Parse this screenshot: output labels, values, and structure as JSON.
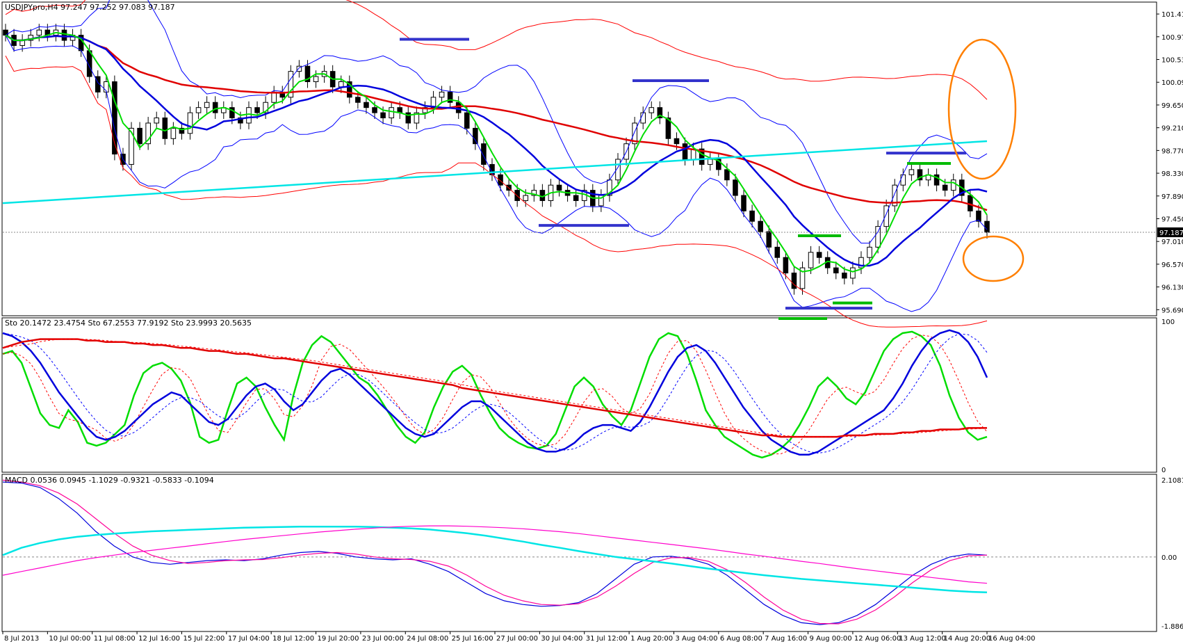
{
  "chart_data": [
    {
      "type": "candlestick",
      "header": "USDJPYpro,H4  97.247 97.252 97.083 97.187",
      "last_price": "97.187",
      "y_ticks": [
        "101.410",
        "100.970",
        "100.530",
        "100.090",
        "99.650",
        "99.210",
        "98.770",
        "98.330",
        "97.890",
        "97.450",
        "97.010",
        "96.570",
        "96.130",
        "95.690"
      ],
      "ylim": [
        95.6,
        101.6
      ],
      "close": [
        101.0,
        100.8,
        100.9,
        101.0,
        101.1,
        101.0,
        101.1,
        100.9,
        101.0,
        100.7,
        100.2,
        99.9,
        100.1,
        98.7,
        98.5,
        99.2,
        98.9,
        99.3,
        99.4,
        99.0,
        99.2,
        99.1,
        99.5,
        99.6,
        99.7,
        99.5,
        99.6,
        99.4,
        99.3,
        99.6,
        99.5,
        99.7,
        99.9,
        99.8,
        100.3,
        100.4,
        100.1,
        100.2,
        100.3,
        100.0,
        100.1,
        99.8,
        99.7,
        99.6,
        99.5,
        99.4,
        99.6,
        99.5,
        99.3,
        99.5,
        99.6,
        99.8,
        99.9,
        99.7,
        99.5,
        99.2,
        98.9,
        98.5,
        98.3,
        98.1,
        98.0,
        97.8,
        97.9,
        98.0,
        97.8,
        98.1,
        98.0,
        97.9,
        97.8,
        98.0,
        97.7,
        97.9,
        98.2,
        98.6,
        98.9,
        99.3,
        99.5,
        99.6,
        99.4,
        99.0,
        98.9,
        98.6,
        98.8,
        98.5,
        98.6,
        98.4,
        98.2,
        97.9,
        97.6,
        97.4,
        97.2,
        96.9,
        96.7,
        96.4,
        96.1,
        96.5,
        96.8,
        96.7,
        96.5,
        96.4,
        96.3,
        96.5,
        96.7,
        96.9,
        97.3,
        97.7,
        98.1,
        98.3,
        98.4,
        98.2,
        98.3,
        98.1,
        98.0,
        98.2,
        97.9,
        97.6,
        97.4,
        97.187
      ],
      "indicators": [
        "Bollinger Bands (blue)",
        "Bollinger Bands (red)",
        "Moving averages (green, blue, red, cyan)"
      ],
      "annotations": [
        "horizontal support/resistance marks (blue, green)",
        "orange ellipses at right edge"
      ]
    },
    {
      "type": "line",
      "header": "Sto 20.1472 23.4754  Sto 67.2553 77.9192  Sto 23.9993 20.5635",
      "y_ticks": [
        "100",
        "0"
      ],
      "ylim": [
        0,
        100
      ],
      "series": [
        {
          "color": "#00dd00",
          "values": [
            78,
            80,
            72,
            55,
            38,
            30,
            28,
            40,
            32,
            18,
            16,
            18,
            24,
            30,
            50,
            65,
            70,
            72,
            68,
            60,
            45,
            22,
            18,
            20,
            40,
            58,
            62,
            56,
            42,
            30,
            20,
            50,
            72,
            84,
            90,
            86,
            78,
            70,
            62,
            58,
            50,
            40,
            30,
            22,
            18,
            25,
            42,
            56,
            66,
            70,
            64,
            50,
            38,
            28,
            22,
            18,
            15,
            14,
            16,
            24,
            40,
            56,
            62,
            56,
            44,
            36,
            30,
            40,
            58,
            76,
            88,
            92,
            90,
            78,
            60,
            40,
            30,
            22,
            18,
            14,
            10,
            8,
            10,
            14,
            20,
            30,
            42,
            56,
            62,
            56,
            48,
            44,
            52,
            66,
            80,
            88,
            92,
            93,
            90,
            84,
            70,
            50,
            35,
            25,
            20,
            22
          ]
        },
        {
          "color": "#0000dd",
          "values": [
            92,
            90,
            86,
            80,
            72,
            62,
            52,
            44,
            36,
            28,
            22,
            20,
            22,
            26,
            32,
            38,
            44,
            48,
            52,
            50,
            44,
            38,
            32,
            30,
            34,
            42,
            50,
            56,
            58,
            54,
            46,
            40,
            44,
            52,
            60,
            66,
            68,
            64,
            58,
            52,
            46,
            40,
            34,
            28,
            24,
            22,
            24,
            30,
            36,
            42,
            46,
            46,
            42,
            36,
            30,
            24,
            18,
            14,
            12,
            12,
            14,
            18,
            24,
            28,
            30,
            30,
            28,
            26,
            32,
            42,
            54,
            66,
            76,
            82,
            84,
            80,
            72,
            62,
            52,
            42,
            34,
            26,
            20,
            16,
            12,
            10,
            10,
            12,
            16,
            20,
            24,
            28,
            32,
            36,
            40,
            48,
            58,
            70,
            80,
            88,
            92,
            94,
            92,
            86,
            76,
            62
          ]
        },
        {
          "color": "#e00000",
          "values": [
            82,
            84,
            86,
            87,
            88,
            88,
            88,
            88,
            88,
            87,
            87,
            86,
            86,
            86,
            85,
            85,
            84,
            84,
            83,
            82,
            82,
            81,
            80,
            80,
            79,
            78,
            78,
            77,
            76,
            75,
            75,
            74,
            73,
            72,
            71,
            70,
            69,
            68,
            67,
            66,
            65,
            64,
            63,
            62,
            61,
            60,
            59,
            58,
            57,
            55,
            54,
            53,
            52,
            51,
            50,
            49,
            48,
            47,
            46,
            45,
            44,
            43,
            42,
            41,
            40,
            39,
            38,
            37,
            36,
            35,
            34,
            33,
            32,
            31,
            30,
            29,
            28,
            27,
            26,
            25,
            24,
            23,
            23,
            22,
            22,
            22,
            22,
            22,
            22,
            22,
            23,
            23,
            23,
            24,
            24,
            24,
            25,
            25,
            26,
            26,
            27,
            27,
            27,
            28,
            28,
            28
          ]
        }
      ]
    },
    {
      "type": "line",
      "header": "MACD 0.0536 0.0945 -1.1029 -0.9321 -0.5833 -0.1094",
      "y_ticks": [
        "2.1081",
        "0.00",
        "-1.8866"
      ],
      "ylim": [
        -1.8866,
        2.1081
      ],
      "series": [
        {
          "color": "#0000dd",
          "values": [
            2.05,
            2.02,
            1.9,
            1.6,
            1.2,
            0.7,
            0.3,
            0.0,
            -0.15,
            -0.2,
            -0.15,
            -0.1,
            -0.08,
            -0.1,
            -0.05,
            0.05,
            0.12,
            0.15,
            0.1,
            0.0,
            -0.05,
            -0.08,
            -0.05,
            -0.2,
            -0.4,
            -0.7,
            -1.0,
            -1.2,
            -1.3,
            -1.35,
            -1.33,
            -1.25,
            -1.0,
            -0.6,
            -0.2,
            0.0,
            0.02,
            -0.05,
            -0.2,
            -0.5,
            -0.9,
            -1.3,
            -1.6,
            -1.8,
            -1.85,
            -1.8,
            -1.6,
            -1.3,
            -0.9,
            -0.5,
            -0.2,
            0.0,
            0.08,
            0.05
          ]
        },
        {
          "color": "#ff0099",
          "values": [
            2.1,
            2.05,
            1.95,
            1.75,
            1.45,
            1.05,
            0.65,
            0.3,
            0.05,
            -0.1,
            -0.18,
            -0.15,
            -0.1,
            -0.08,
            -0.07,
            -0.02,
            0.05,
            0.1,
            0.12,
            0.08,
            0.0,
            -0.05,
            -0.07,
            -0.12,
            -0.25,
            -0.5,
            -0.8,
            -1.05,
            -1.2,
            -1.3,
            -1.32,
            -1.28,
            -1.1,
            -0.8,
            -0.45,
            -0.15,
            -0.02,
            -0.02,
            -0.12,
            -0.35,
            -0.7,
            -1.1,
            -1.45,
            -1.7,
            -1.82,
            -1.83,
            -1.7,
            -1.45,
            -1.1,
            -0.7,
            -0.35,
            -0.1,
            0.03,
            0.05
          ]
        },
        {
          "color": "#00e5e5",
          "values": [
            0.05,
            0.25,
            0.38,
            0.48,
            0.55,
            0.6,
            0.64,
            0.67,
            0.7,
            0.72,
            0.74,
            0.76,
            0.78,
            0.8,
            0.81,
            0.82,
            0.83,
            0.83,
            0.83,
            0.83,
            0.82,
            0.8,
            0.78,
            0.75,
            0.7,
            0.65,
            0.58,
            0.5,
            0.42,
            0.33,
            0.25,
            0.16,
            0.08,
            0.0,
            -0.06,
            -0.12,
            -0.18,
            -0.25,
            -0.32,
            -0.38,
            -0.44,
            -0.5,
            -0.55,
            -0.6,
            -0.64,
            -0.68,
            -0.72,
            -0.76,
            -0.8,
            -0.84,
            -0.88,
            -0.92,
            -0.95,
            -0.97
          ]
        },
        {
          "color": "#ff00cc",
          "values": [
            -0.5,
            -0.4,
            -0.3,
            -0.2,
            -0.1,
            -0.02,
            0.05,
            0.12,
            0.18,
            0.24,
            0.3,
            0.36,
            0.42,
            0.48,
            0.53,
            0.58,
            0.63,
            0.68,
            0.72,
            0.76,
            0.79,
            0.82,
            0.84,
            0.85,
            0.85,
            0.84,
            0.82,
            0.8,
            0.77,
            0.73,
            0.69,
            0.64,
            0.58,
            0.52,
            0.46,
            0.4,
            0.34,
            0.28,
            0.22,
            0.15,
            0.08,
            0.02,
            -0.05,
            -0.12,
            -0.18,
            -0.25,
            -0.32,
            -0.38,
            -0.44,
            -0.5,
            -0.56,
            -0.62,
            -0.68,
            -0.72
          ]
        }
      ]
    }
  ],
  "x_ticks": [
    "8 Jul 2013",
    "10 Jul 00:00",
    "11 Jul 08:00",
    "12 Jul 16:00",
    "15 Jul 22:00",
    "17 Jul 04:00",
    "18 Jul 12:00",
    "19 Jul 20:00",
    "23 Jul 00:00",
    "24 Jul 08:00",
    "25 Jul 16:00",
    "27 Jul 00:00",
    "30 Jul 04:00",
    "31 Jul 12:00",
    "1 Aug 20:00",
    "3 Aug 04:00",
    "6 Aug 08:00",
    "7 Aug 16:00",
    "9 Aug 00:00",
    "12 Aug 06:00",
    "13 Aug 12:00",
    "14 Aug 20:00",
    "16 Aug 04:00"
  ],
  "colors": {
    "bb_blue": "#0000ff",
    "bb_red": "#ff0000",
    "ma_green": "#00dd00",
    "ma_blue": "#0000dd",
    "ma_red": "#e00000",
    "ma_cyan": "#00e5e5",
    "orange": "#ff7f00",
    "level_blue": "#3333cc",
    "level_green": "#00bb00"
  }
}
